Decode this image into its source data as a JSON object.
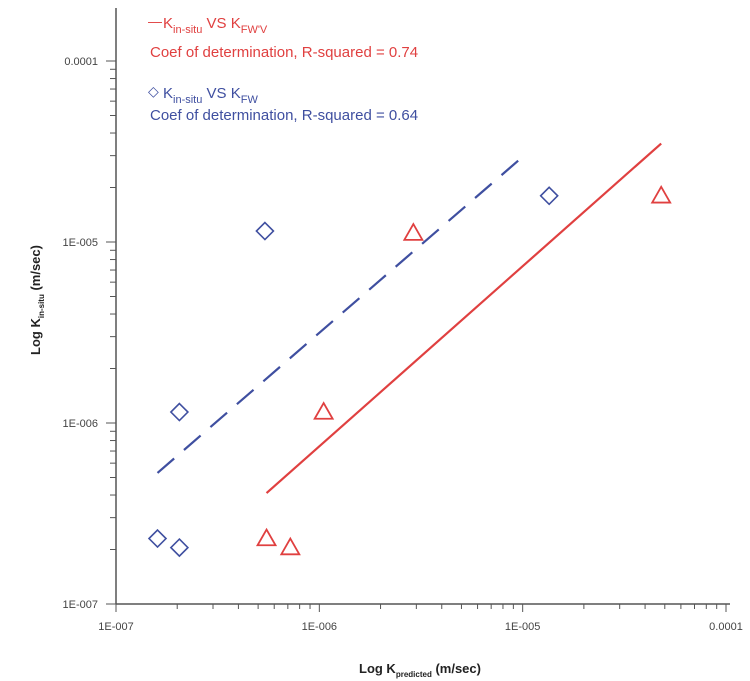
{
  "chart_data": {
    "type": "scatter",
    "title": "",
    "xlabel": {
      "prefix": "Log K",
      "sub": "predicted",
      "suffix": " (m/sec)"
    },
    "ylabel": {
      "prefix": "Log K",
      "sub": "in-situ",
      "suffix": " (m/sec)"
    },
    "x_scale": "log",
    "y_scale": "log",
    "xlim": [
      1e-07,
      0.0001
    ],
    "ylim": [
      1e-07,
      0.0002
    ],
    "x_tick_labels": [
      "1E-007",
      "1E-006",
      "1E-005",
      "0.0001"
    ],
    "y_tick_labels": [
      "1E-007",
      "1E-006",
      "1E-005",
      "0.0001"
    ],
    "grid": false,
    "legend": [
      {
        "series": "fwv",
        "marker_line": "—",
        "main": "K",
        "sub1": "in-situ",
        "mid": " VS K",
        "sub2": "FW'V",
        "stat": "Coef of determination, R-squared = 0.74",
        "color": "#e04040"
      },
      {
        "series": "fw",
        "marker_line": "◇",
        "main": "K",
        "sub1": "in-situ",
        "mid": " VS K",
        "sub2": "FW",
        "stat": "Coef of determination, R-squared = 0.64",
        "color": "#3f4fa0"
      }
    ],
    "series": [
      {
        "id": "fwv",
        "marker": "triangle",
        "color": "#e04040",
        "points": [
          {
            "x": 5.5e-07,
            "y": 2.3e-07
          },
          {
            "x": 7.2e-07,
            "y": 2.05e-07
          },
          {
            "x": 1.05e-06,
            "y": 1.15e-06
          },
          {
            "x": 2.9e-06,
            "y": 1.12e-05
          },
          {
            "x": 4.8e-05,
            "y": 1.8e-05
          }
        ],
        "fit": {
          "style": "solid",
          "from": {
            "x": 5.5e-07,
            "y": 4.1e-07
          },
          "to": {
            "x": 4.8e-05,
            "y": 3.5e-05
          }
        }
      },
      {
        "id": "fw",
        "marker": "diamond",
        "color": "#3f4fa0",
        "points": [
          {
            "x": 1.6e-07,
            "y": 2.3e-07
          },
          {
            "x": 2.05e-07,
            "y": 2.05e-07
          },
          {
            "x": 2.05e-07,
            "y": 1.15e-06
          },
          {
            "x": 5.4e-07,
            "y": 1.15e-05
          },
          {
            "x": 1.35e-05,
            "y": 1.8e-05
          }
        ],
        "fit": {
          "style": "dashed",
          "from": {
            "x": 1.6e-07,
            "y": 5.3e-07
          },
          "to": {
            "x": 1.05e-05,
            "y": 3.1e-05
          }
        }
      }
    ]
  }
}
